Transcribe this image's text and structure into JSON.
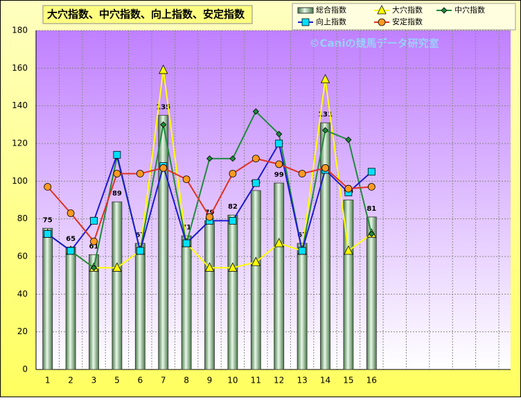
{
  "chart_data": {
    "type": "bar-line",
    "title": "大穴指数、中穴指数、向上指数、安定指数",
    "watermark": "©Caniの競馬データ研究室",
    "categories": [
      "1",
      "2",
      "3",
      "5",
      "6",
      "7",
      "8",
      "9",
      "10",
      "11",
      "12",
      "13",
      "14",
      "15",
      "16",
      null,
      null,
      null,
      null,
      null
    ],
    "ylim": [
      0,
      180
    ],
    "yticks": [
      0,
      20,
      40,
      60,
      80,
      100,
      120,
      140,
      160,
      180
    ],
    "grid": true,
    "legend_position": "top-right",
    "series": [
      {
        "name": "総合指数",
        "type": "bar",
        "color": "#9fc79f",
        "values": [
          75,
          65,
          61,
          89,
          67,
          135,
          71,
          79,
          82,
          95,
          99,
          67,
          131,
          90,
          81,
          null,
          null,
          null,
          null,
          null
        ]
      },
      {
        "name": "大穴指数",
        "type": "line",
        "marker": "triangle",
        "color": "#ffff00",
        "values": [
          72,
          63,
          54,
          54,
          63,
          159,
          67,
          54,
          54,
          57,
          67,
          63,
          154,
          63,
          72,
          null,
          null,
          null,
          null,
          null
        ]
      },
      {
        "name": "中穴指数",
        "type": "line",
        "marker": "diamond",
        "color": "#1e8a3c",
        "values": [
          72,
          63,
          54,
          113,
          63,
          130,
          67,
          112,
          112,
          137,
          125,
          63,
          127,
          122,
          72,
          null,
          null,
          null,
          null,
          null
        ]
      },
      {
        "name": "向上指数",
        "type": "line",
        "marker": "square",
        "color": "#1a1ad0",
        "values": [
          72,
          63,
          79,
          114,
          63,
          108,
          67,
          79,
          79,
          99,
          120,
          63,
          106,
          94,
          105,
          null,
          null,
          null,
          null,
          null
        ]
      },
      {
        "name": "安定指数",
        "type": "line",
        "marker": "circle",
        "color": "#e03020",
        "values": [
          97,
          83,
          68,
          104,
          104,
          107,
          101,
          81,
          104,
          112,
          109,
          104,
          107,
          96,
          97,
          null,
          null,
          null,
          null,
          null
        ]
      }
    ]
  }
}
